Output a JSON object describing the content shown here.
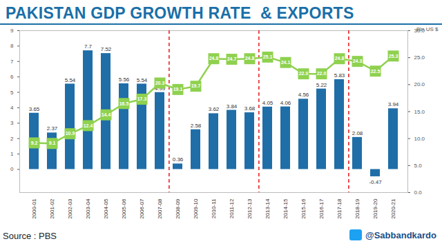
{
  "chart_data": {
    "type": "bar",
    "title": "PAKISTAN GDP GROWTH RATE  & EXPORTS",
    "source": "Source : PBS",
    "handle": "@Sabbandkardo",
    "categories": [
      "2000-01",
      "2001-02",
      "2002-03",
      "2003-04",
      "2004-05",
      "2005-06",
      "2006-07",
      "2007-08",
      "2008-09",
      "2009-10",
      "2010-11",
      "2011-12",
      "2012-13",
      "2013-14",
      "2014-15",
      "2015-16",
      "2016-17",
      "2017-18",
      "2018-19",
      "2019-20",
      "2020-21"
    ],
    "series": [
      {
        "type": "bar",
        "color": "#1f6ea8",
        "data_labels": true,
        "values": [
          3.65,
          2.37,
          5.54,
          7.7,
          7.52,
          5.56,
          5.54,
          4.99,
          0.36,
          2.58,
          3.62,
          3.84,
          3.68,
          4.05,
          4.06,
          4.56,
          5.22,
          5.83,
          2.08,
          -0.47,
          3.94
        ]
      },
      {
        "type": "line",
        "axis": "y2",
        "color": "#8fd14f",
        "marker": "square",
        "data_labels": true,
        "values": [
          9.2,
          9.1,
          10.9,
          12.4,
          14.4,
          16.5,
          17.3,
          20.3,
          19.1,
          19.7,
          24.8,
          24.7,
          24.8,
          25.1,
          24.1,
          22.0,
          22.0,
          24.8,
          24.3,
          22.5,
          25.3
        ],
        "value_labels": [
          "9.2",
          "9.1",
          "10.9",
          "12.4",
          "14.4",
          "16.5",
          "17.3",
          "20.3",
          "19.1",
          "19.7",
          "24.8",
          "24.7",
          "24.8",
          "25.1",
          "24.1",
          "22.0",
          "22.0",
          "24.8",
          "24.3",
          "22.5",
          "25.3"
        ]
      }
    ],
    "dividers": [
      "2007-08",
      "2012-13",
      "2017-18"
    ],
    "ylim": [
      -1.5,
      9
    ],
    "yticks": [
      0,
      1,
      2,
      3,
      4,
      5,
      6,
      7,
      8,
      9
    ],
    "y2label": "Bln US $",
    "y2lim": [
      0,
      30
    ],
    "y2ticks": [
      {
        "value": 0,
        "label": "0.0"
      },
      {
        "value": 5,
        "label": "5.0"
      },
      {
        "value": 10,
        "label": "10.0"
      },
      {
        "value": 15,
        "label": "15.0"
      },
      {
        "value": 20,
        "label": "20.0"
      },
      {
        "value": 25,
        "label": "25.0"
      },
      {
        "value": 30,
        "label": "30.0"
      }
    ],
    "grid": false
  }
}
